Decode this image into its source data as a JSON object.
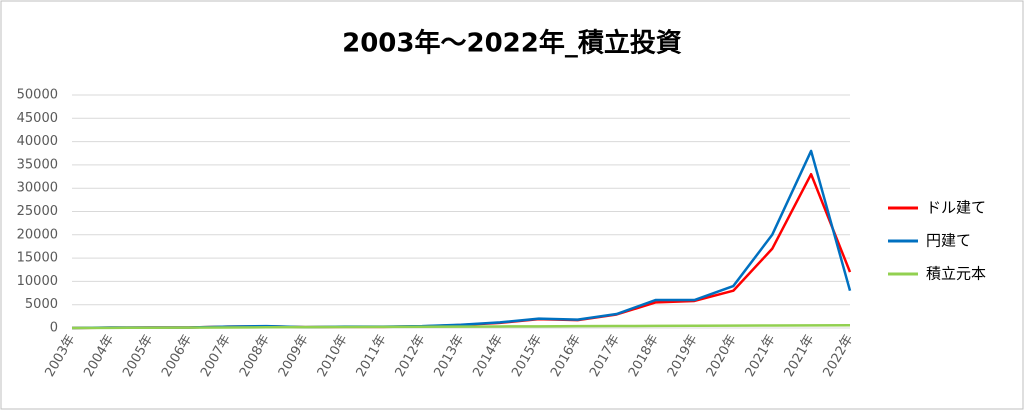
{
  "chart_data": {
    "type": "line",
    "title": "2003年～2022年_積立投資",
    "categories": [
      "2003年",
      "2004年",
      "2005年",
      "2006年",
      "2007年",
      "2008年",
      "2009年",
      "2010年",
      "2011年",
      "2012年",
      "2013年",
      "2014年",
      "2015年",
      "2016年",
      "2017年",
      "2018年",
      "2019年",
      "2020年",
      "2021年",
      "2021年",
      "2022年"
    ],
    "series": [
      {
        "name": "ドル建て",
        "color": "#ff0000",
        "values": [
          0,
          80,
          100,
          100,
          300,
          350,
          200,
          250,
          250,
          350,
          650,
          1100,
          1900,
          1700,
          2900,
          5500,
          5800,
          8000,
          17000,
          33000,
          12000
        ]
      },
      {
        "name": "円建て",
        "color": "#0070c0",
        "values": [
          0,
          100,
          100,
          100,
          300,
          400,
          200,
          300,
          300,
          400,
          700,
          1200,
          2000,
          1800,
          3000,
          6000,
          6000,
          9000,
          20000,
          38000,
          8000
        ]
      },
      {
        "name": "積立元本",
        "color": "#92d050",
        "values": [
          0,
          30,
          60,
          90,
          120,
          150,
          180,
          210,
          240,
          270,
          300,
          330,
          360,
          390,
          420,
          450,
          480,
          510,
          540,
          570,
          600
        ]
      }
    ],
    "ylim": [
      0,
      50000
    ],
    "yticks": [
      0,
      5000,
      10000,
      15000,
      20000,
      25000,
      30000,
      35000,
      40000,
      45000,
      50000
    ],
    "grid": true,
    "legend": "right"
  }
}
